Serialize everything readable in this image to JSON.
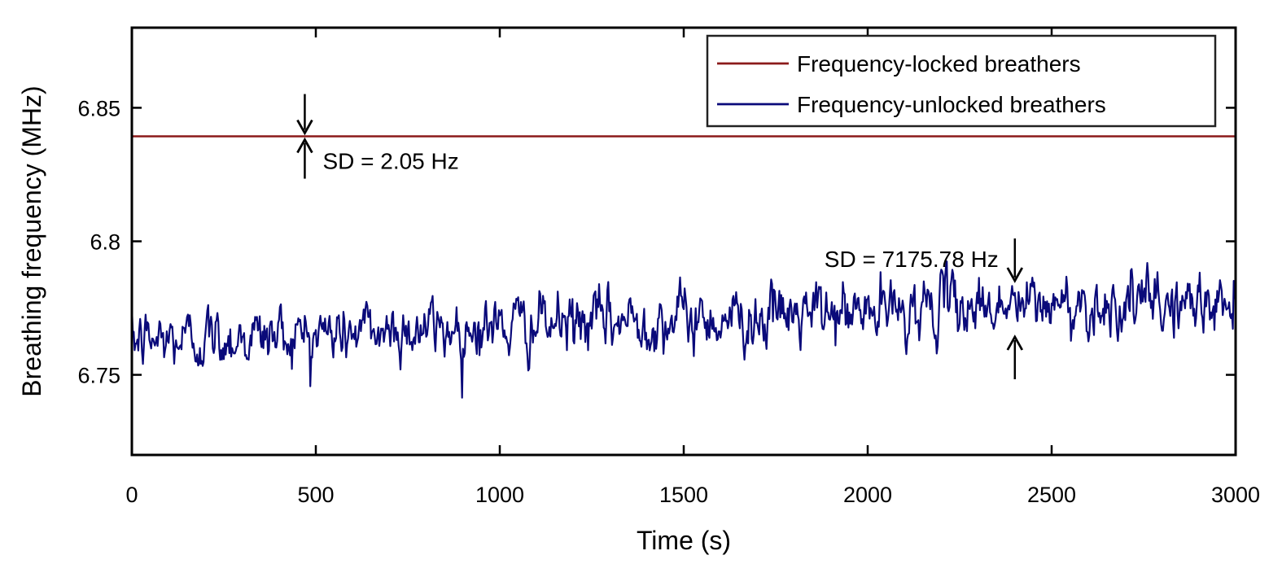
{
  "chart_data": {
    "type": "line",
    "xlabel": "Time (s)",
    "ylabel": "Breathing frequency (MHz)",
    "xlim": [
      0,
      3000
    ],
    "ylim": [
      6.72,
      6.88
    ],
    "xticks": [
      0,
      500,
      1000,
      1500,
      2000,
      2500,
      3000
    ],
    "xtick_labels": [
      "0",
      "500",
      "1000",
      "1500",
      "2000",
      "2500",
      "3000"
    ],
    "yticks": [
      6.75,
      6.8,
      6.85
    ],
    "ytick_labels": [
      "6.75",
      "6.8",
      "6.85"
    ],
    "grid": false,
    "legend_position": "top-right",
    "series": [
      {
        "name": "Frequency-locked breathers",
        "color": "#8b1a1a",
        "x": [
          0,
          3000
        ],
        "y": [
          6.8393,
          6.8393
        ]
      },
      {
        "name": "Frequency-unlocked breathers",
        "color": "#0a0a7a",
        "trend_x": [
          0,
          250,
          500,
          750,
          1000,
          1250,
          1500,
          1750,
          2000,
          2200,
          2500,
          2750,
          3000
        ],
        "trend_y": [
          6.7625,
          6.764,
          6.7655,
          6.767,
          6.768,
          6.7695,
          6.771,
          6.772,
          6.773,
          6.776,
          6.776,
          6.7765,
          6.776
        ],
        "noise_sd": 0.0055,
        "samples": 1200
      }
    ],
    "annotations": [
      {
        "text": "SD = 2.05 Hz",
        "x": 470,
        "y": 6.8393
      },
      {
        "text": "SD = 7175.78 Hz",
        "x": 2400,
        "y": 6.776
      }
    ]
  }
}
